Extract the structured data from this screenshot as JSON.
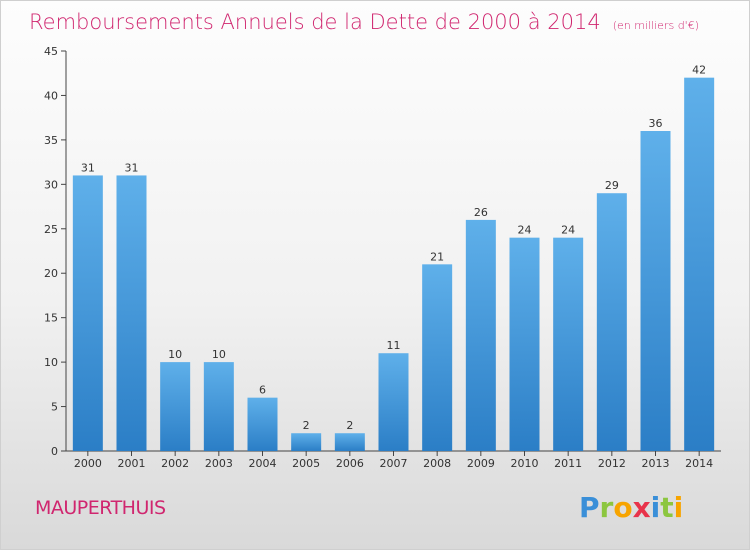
{
  "colors": {
    "accent": "#d0266f",
    "bar_light": "#5fb0ea",
    "bar_dark": "#2b7ec6"
  },
  "header": {
    "title": "Remboursements Annuels de la Dette de 2000 à 2014",
    "subtitle": "(en milliers d'€)"
  },
  "footer": {
    "commune": "MAUPERTHUIS",
    "logo_letters": [
      "P",
      "r",
      "o",
      "x",
      "i",
      "t",
      "i"
    ]
  },
  "chart_data": {
    "type": "bar",
    "categories": [
      "2000",
      "2001",
      "2002",
      "2003",
      "2004",
      "2005",
      "2006",
      "2007",
      "2008",
      "2009",
      "2010",
      "2011",
      "2012",
      "2013",
      "2014"
    ],
    "values": [
      31,
      31,
      10,
      10,
      6,
      2,
      2,
      11,
      21,
      26,
      24,
      24,
      29,
      36,
      42
    ],
    "title": "Remboursements Annuels de la Dette de 2000 à 2014",
    "subtitle": "(en milliers d'€)",
    "ylim": [
      0,
      45
    ],
    "yticks": [
      0,
      5,
      10,
      15,
      20,
      25,
      30,
      35,
      40,
      45
    ],
    "data_labels": true,
    "grid": false
  }
}
